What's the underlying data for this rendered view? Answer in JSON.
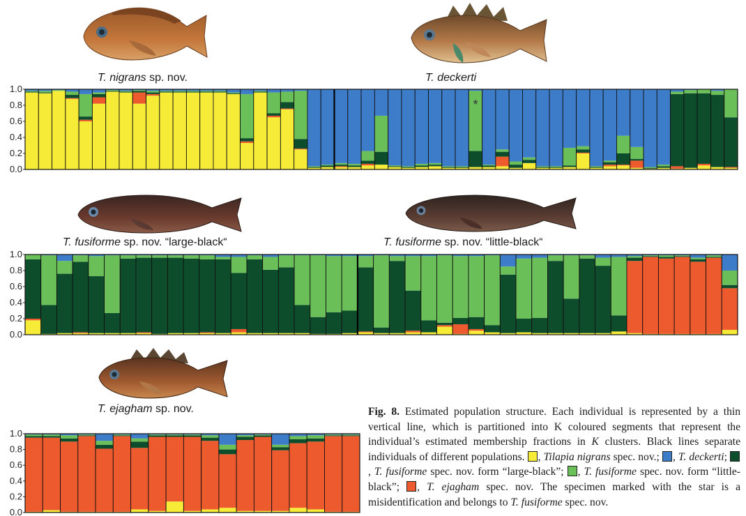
{
  "colors": {
    "yellow": "#f6ec38",
    "blue": "#3d7cc9",
    "dark_green": "#0e4d2c",
    "light_green": "#6bbf59",
    "orange": "#ec5a2e"
  },
  "labels": {
    "nigrans": {
      "name": "T. nigrans",
      "suffix": " sp. nov."
    },
    "deckerti": {
      "name": "T. deckerti",
      "suffix": ""
    },
    "fusiforme_large": {
      "name": "T. fusiforme",
      "suffix": " sp. nov. “large-black“"
    },
    "fusiforme_little": {
      "name": "T. fusiforme",
      "suffix": " sp. nov. “little-black“"
    },
    "ejagham": {
      "name": "T. ejagham",
      "suffix": " sp. nov."
    }
  },
  "caption": {
    "fig_label": "Fig. 8.",
    "body": " Estimated population structure. Each individual is represented by a thin vertical line, which is partitioned into K coloured segments that represent the individual’s estimated membership fractions in ",
    "k": "K",
    "body2": " clusters. Black lines separate individuals of different populations. ",
    "legend_nigrans": "Tilapia nigrans",
    "legend_nigrans_suffix": " spec. nov.; ",
    "legend_deckerti": "T. deckerti",
    "legend_deckerti_suffix": "; ",
    "legend_large": "T. fusiforme",
    "legend_large_suffix": " spec. nov. form “large-black”; ",
    "legend_little": "T. fusiforme",
    "legend_little_suffix": " spec. nov. form “little-black”; ",
    "legend_ejagham": "T. ejagham",
    "legend_ejagham_suffix": " spec. nov. The specimen marked with the star is a misidentification and belongs to ",
    "final_species": "T. fusiforme",
    "final_suffix": " spec. nov."
  },
  "chart_data": [
    {
      "type": "bar",
      "stacked": true,
      "ylim": [
        0,
        1
      ],
      "yticks": [
        "1.0",
        "0.8",
        "0.6",
        "0.4",
        "0.2",
        "0.0"
      ],
      "segment_order": [
        "yellow",
        "orange",
        "dark_green",
        "light_green",
        "blue"
      ],
      "separators_after": [
        22
      ],
      "annotations": [
        {
          "text": "*",
          "bar": 33
        }
      ],
      "bars": [
        [
          0.96,
          0,
          0.01,
          0.01,
          0.02
        ],
        [
          0.95,
          0,
          0.01,
          0.02,
          0.02
        ],
        [
          0.98,
          0,
          0,
          0.01,
          0.01
        ],
        [
          0.88,
          0.01,
          0.04,
          0.04,
          0.03
        ],
        [
          0.6,
          0.02,
          0.04,
          0.28,
          0.06
        ],
        [
          0.82,
          0.08,
          0.04,
          0.02,
          0.04
        ],
        [
          0.97,
          0,
          0.01,
          0.01,
          0.01
        ],
        [
          0.96,
          0,
          0.01,
          0.01,
          0.02
        ],
        [
          0.82,
          0.14,
          0.02,
          0.01,
          0.01
        ],
        [
          0.92,
          0.02,
          0.02,
          0.02,
          0.02
        ],
        [
          0.96,
          0,
          0.01,
          0.01,
          0.02
        ],
        [
          0.96,
          0,
          0.01,
          0.01,
          0.02
        ],
        [
          0.96,
          0,
          0.01,
          0.01,
          0.02
        ],
        [
          0.96,
          0,
          0.01,
          0.01,
          0.02
        ],
        [
          0.96,
          0,
          0.01,
          0.01,
          0.02
        ],
        [
          0.94,
          0,
          0.01,
          0.01,
          0.04
        ],
        [
          0.33,
          0.02,
          0.04,
          0.55,
          0.06
        ],
        [
          0.96,
          0,
          0.01,
          0.01,
          0.02
        ],
        [
          0.65,
          0.02,
          0.03,
          0.26,
          0.04
        ],
        [
          0.75,
          0.01,
          0.08,
          0.13,
          0.03
        ],
        [
          0.25,
          0.01,
          0.12,
          0.6,
          0.02
        ],
        [
          0.02,
          0,
          0.01,
          0.01,
          0.96
        ],
        [
          0.03,
          0,
          0.02,
          0.01,
          0.94
        ],
        [
          0.03,
          0.01,
          0.02,
          0.02,
          0.92
        ],
        [
          0.03,
          0,
          0.02,
          0.02,
          0.93
        ],
        [
          0.05,
          0.02,
          0.04,
          0.12,
          0.77
        ],
        [
          0.06,
          0,
          0.16,
          0.45,
          0.33
        ],
        [
          0.03,
          0,
          0.01,
          0.01,
          0.95
        ],
        [
          0.02,
          0,
          0.01,
          0.01,
          0.96
        ],
        [
          0.03,
          0,
          0.02,
          0.02,
          0.93
        ],
        [
          0.04,
          0,
          0.02,
          0.02,
          0.92
        ],
        [
          0.02,
          0,
          0.01,
          0.01,
          0.96
        ],
        [
          0.02,
          0,
          0.01,
          0.01,
          0.96
        ],
        [
          0.03,
          0,
          0.2,
          0.75,
          0.02
        ],
        [
          0.03,
          0,
          0.02,
          0.01,
          0.94
        ],
        [
          0.04,
          0.12,
          0.06,
          0.03,
          0.75
        ],
        [
          0.02,
          0,
          0.04,
          0.04,
          0.9
        ],
        [
          0.08,
          0,
          0.04,
          0.03,
          0.85
        ],
        [
          0.02,
          0,
          0.01,
          0.01,
          0.96
        ],
        [
          0.02,
          0,
          0.01,
          0.01,
          0.96
        ],
        [
          0.03,
          0,
          0.02,
          0.22,
          0.73
        ],
        [
          0.2,
          0.01,
          0.04,
          0.04,
          0.71
        ],
        [
          0.02,
          0,
          0.01,
          0.01,
          0.96
        ],
        [
          0.04,
          0.02,
          0.03,
          0.02,
          0.89
        ],
        [
          0.05,
          0.01,
          0.14,
          0.22,
          0.58
        ],
        [
          0.02,
          0.09,
          0.02,
          0.15,
          0.72
        ],
        [
          0.01,
          0,
          0.01,
          0.01,
          0.97
        ],
        [
          0.02,
          0,
          0.02,
          0.02,
          0.94
        ],
        [
          0.01,
          0.03,
          0.9,
          0.03,
          0.03
        ],
        [
          0.02,
          0,
          0.93,
          0.04,
          0.01
        ],
        [
          0.05,
          0.02,
          0.88,
          0.05,
          0
        ],
        [
          0.03,
          0,
          0.9,
          0.05,
          0.02
        ],
        [
          0.02,
          0.01,
          0.62,
          0.35,
          0
        ]
      ]
    },
    {
      "type": "bar",
      "stacked": true,
      "ylim": [
        0,
        1
      ],
      "yticks": [
        "1.0",
        "0.8",
        "0.6",
        "0.4",
        "0.2",
        "0.0"
      ],
      "segment_order": [
        "yellow",
        "orange",
        "dark_green",
        "light_green",
        "blue"
      ],
      "separators_after": [
        20
      ],
      "bars": [
        [
          0.18,
          0.02,
          0.74,
          0.06,
          0
        ],
        [
          0.01,
          0,
          0.36,
          0.62,
          0.01
        ],
        [
          0.02,
          0,
          0.74,
          0.16,
          0.08
        ],
        [
          0.02,
          0.01,
          0.88,
          0.08,
          0.01
        ],
        [
          0.02,
          0,
          0.71,
          0.25,
          0.02
        ],
        [
          0.02,
          0,
          0.25,
          0.72,
          0.01
        ],
        [
          0.02,
          0,
          0.93,
          0.04,
          0.01
        ],
        [
          0.02,
          0.01,
          0.93,
          0.03,
          0.01
        ],
        [
          0.01,
          0,
          0.95,
          0.03,
          0.01
        ],
        [
          0.02,
          0,
          0.94,
          0.03,
          0.01
        ],
        [
          0.02,
          0,
          0.93,
          0.04,
          0.01
        ],
        [
          0.02,
          0.01,
          0.91,
          0.05,
          0.01
        ],
        [
          0.02,
          0,
          0.92,
          0.03,
          0.03
        ],
        [
          0.03,
          0.04,
          0.7,
          0.2,
          0.03
        ],
        [
          0.02,
          0,
          0.92,
          0.05,
          0.01
        ],
        [
          0.02,
          0,
          0.79,
          0.16,
          0.03
        ],
        [
          0.02,
          0,
          0.82,
          0.15,
          0.01
        ],
        [
          0.02,
          0,
          0.35,
          0.62,
          0.01
        ],
        [
          0.01,
          0,
          0.21,
          0.77,
          0.01
        ],
        [
          0.01,
          0,
          0.27,
          0.7,
          0.02
        ],
        [
          0.02,
          0,
          0.28,
          0.68,
          0.02
        ],
        [
          0.03,
          0.01,
          0.8,
          0.14,
          0.02
        ],
        [
          0.02,
          0,
          0.07,
          0.9,
          0.01
        ],
        [
          0.02,
          0,
          0.9,
          0.06,
          0.02
        ],
        [
          0.03,
          0.02,
          0.5,
          0.43,
          0.02
        ],
        [
          0.03,
          0,
          0.15,
          0.8,
          0.02
        ],
        [
          0.1,
          0.02,
          0.03,
          0.84,
          0.01
        ],
        [
          0.01,
          0.12,
          0.08,
          0.77,
          0.02
        ],
        [
          0.05,
          0.02,
          0.15,
          0.76,
          0.02
        ],
        [
          0.03,
          0,
          0.09,
          0.87,
          0.01
        ],
        [
          0.02,
          0,
          0.73,
          0.1,
          0.15
        ],
        [
          0.03,
          0,
          0.17,
          0.75,
          0.05
        ],
        [
          0.02,
          0,
          0.19,
          0.75,
          0.04
        ],
        [
          0.02,
          0,
          0.9,
          0.07,
          0.01
        ],
        [
          0.02,
          0,
          0.43,
          0.54,
          0.01
        ],
        [
          0.02,
          0,
          0.93,
          0.04,
          0.01
        ],
        [
          0.02,
          0,
          0.84,
          0.1,
          0.04
        ],
        [
          0.04,
          0,
          0.2,
          0.73,
          0.03
        ],
        [
          0.02,
          0.9,
          0.04,
          0.02,
          0.02
        ],
        [
          0.01,
          0.96,
          0.01,
          0.01,
          0.01
        ],
        [
          0.01,
          0.94,
          0.02,
          0.02,
          0.01
        ],
        [
          0.01,
          0.96,
          0.01,
          0.01,
          0.01
        ],
        [
          0.01,
          0.9,
          0.03,
          0.02,
          0.04
        ],
        [
          0.01,
          0.95,
          0.01,
          0.02,
          0.01
        ],
        [
          0.06,
          0.52,
          0.04,
          0.18,
          0.2
        ]
      ]
    },
    {
      "type": "bar",
      "stacked": true,
      "ylim": [
        0,
        1
      ],
      "yticks": [
        "1.0",
        "0.8",
        "0.6",
        "0.4",
        "0.2",
        "0.0"
      ],
      "segment_order": [
        "yellow",
        "orange",
        "dark_green",
        "light_green",
        "blue"
      ],
      "separators_after": [],
      "bars": [
        [
          0.01,
          0.94,
          0.02,
          0.02,
          0.01
        ],
        [
          0.03,
          0.92,
          0.02,
          0.02,
          0.01
        ],
        [
          0.01,
          0.89,
          0.04,
          0.04,
          0.02
        ],
        [
          0.01,
          0.96,
          0.01,
          0.01,
          0.01
        ],
        [
          0.01,
          0.8,
          0.05,
          0.05,
          0.09
        ],
        [
          0.01,
          0.96,
          0.01,
          0.01,
          0.01
        ],
        [
          0.04,
          0.78,
          0.08,
          0.04,
          0.06
        ],
        [
          0.02,
          0.94,
          0.02,
          0.01,
          0.01
        ],
        [
          0.14,
          0.82,
          0.02,
          0.01,
          0.01
        ],
        [
          0.02,
          0.94,
          0.02,
          0.01,
          0.01
        ],
        [
          0.04,
          0.87,
          0.04,
          0.03,
          0.02
        ],
        [
          0.06,
          0.68,
          0.06,
          0.06,
          0.14
        ],
        [
          0.02,
          0.9,
          0.04,
          0.02,
          0.02
        ],
        [
          0.02,
          0.94,
          0.02,
          0.01,
          0.01
        ],
        [
          0.02,
          0.77,
          0.04,
          0.03,
          0.14
        ],
        [
          0.06,
          0.82,
          0.05,
          0.04,
          0.03
        ],
        [
          0.04,
          0.86,
          0.04,
          0.04,
          0.02
        ],
        [
          0.01,
          0.96,
          0.01,
          0.01,
          0.01
        ],
        [
          0.01,
          0.96,
          0.01,
          0.01,
          0.01
        ]
      ]
    }
  ]
}
